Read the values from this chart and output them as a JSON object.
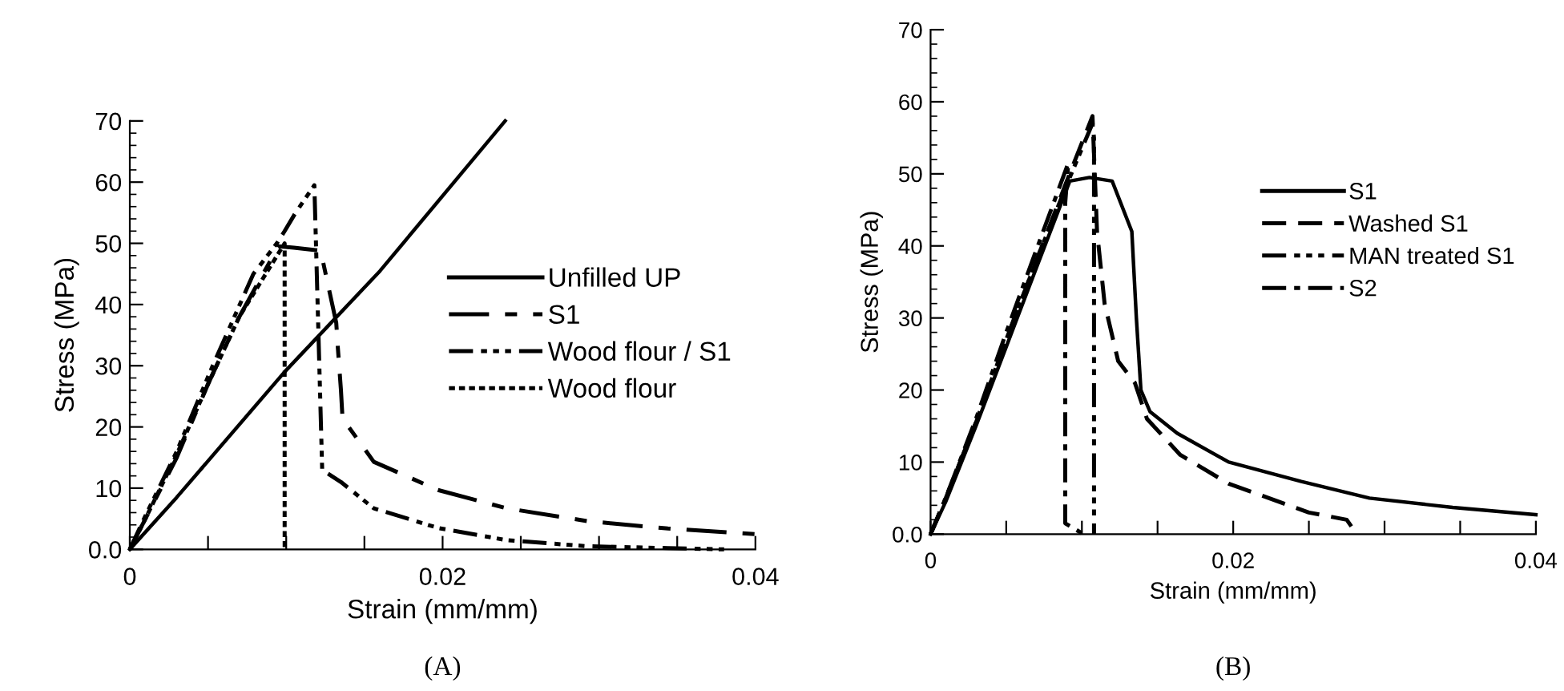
{
  "chart_data": [
    {
      "type": "line",
      "xlabel": "Strain (mm/mm)",
      "ylabel": "Stress (MPa)",
      "annotations": [
        "(A)"
      ],
      "legend": "right",
      "grid": false,
      "marker": "none",
      "xlim": [
        0,
        0.04
      ],
      "ylim": [
        0,
        70
      ],
      "xticks": [
        0,
        {
          "value": 0.005,
          "label": null
        },
        {
          "value": 0.01,
          "label": null
        },
        {
          "value": 0.015,
          "label": null
        },
        0.02,
        {
          "value": 0.025,
          "label": null
        },
        {
          "value": 0.03,
          "label": null
        },
        {
          "value": 0.035,
          "label": null
        },
        0.04
      ],
      "yticks": [
        {
          "value": 0,
          "label": "0.0"
        },
        10,
        20,
        30,
        40,
        50,
        60,
        70
      ],
      "series": [
        {
          "name": "Unfilled UP",
          "color": "#000000",
          "line_style": "solid",
          "x": [
            0,
            0.003,
            0.0099,
            0.016,
            0.024
          ],
          "values": [
            0,
            8.5,
            29,
            45.5,
            70
          ]
        },
        {
          "name": "S1",
          "color": "#000000",
          "line_style": "longdash",
          "x": [
            0,
            0.001,
            0.003,
            0.005,
            0.007,
            0.0095,
            0.0105,
            0.0122,
            0.0132,
            0.0133,
            0.0135,
            0.0136,
            0.0156,
            0.0197,
            0.0241,
            0.0293,
            0.0344,
            0.04
          ],
          "values": [
            0,
            5,
            15,
            27,
            38,
            49.5,
            49.3,
            48.8,
            37,
            33,
            26,
            21.4,
            14.3,
            9.7,
            6.7,
            4.6,
            3.4,
            2.5
          ]
        },
        {
          "name": "Wood flour / S1",
          "color": "#000000",
          "line_style": "dashdotdot",
          "x": [
            0,
            0.001,
            0.003,
            0.0053,
            0.0079,
            0.0094,
            0.0099,
            0.0106,
            0.0118,
            0.0123,
            0.0135,
            0.0156,
            0.0197,
            0.0241,
            0.0293,
            0.0344,
            0.038
          ],
          "values": [
            0,
            5.5,
            16,
            30,
            45,
            50,
            52,
            55,
            59.5,
            13,
            11,
            6.7,
            3.5,
            1.5,
            0.5,
            0.2,
            0
          ]
        },
        {
          "name": "Wood flour",
          "color": "#000000",
          "line_style": "dotted",
          "x": [
            0,
            0.001,
            0.003,
            0.005,
            0.007,
            0.0099,
            0.0099
          ],
          "values": [
            0,
            5,
            15.5,
            27,
            38,
            50,
            0
          ]
        }
      ]
    },
    {
      "type": "line",
      "xlabel": "Strain (mm/mm)",
      "ylabel": "Stress (MPa)",
      "annotations": [
        "(B)"
      ],
      "legend": "right",
      "grid": false,
      "marker": "none",
      "xlim": [
        0,
        0.04
      ],
      "ylim": [
        0,
        70
      ],
      "xticks": [
        0,
        {
          "value": 0.005,
          "label": null
        },
        {
          "value": 0.01,
          "label": null
        },
        {
          "value": 0.015,
          "label": null
        },
        0.02,
        {
          "value": 0.025,
          "label": null
        },
        {
          "value": 0.03,
          "label": null
        },
        {
          "value": 0.035,
          "label": null
        },
        0.04
      ],
      "yticks": [
        {
          "value": 0,
          "label": "0.0"
        },
        10,
        20,
        30,
        40,
        50,
        60,
        70
      ],
      "series": [
        {
          "name": "S1",
          "color": "#000000",
          "line_style": "solid",
          "x": [
            0,
            0.001,
            0.003,
            0.005,
            0.007,
            0.0092,
            0.0105,
            0.012,
            0.0133,
            0.0136,
            0.0139,
            0.0145,
            0.0163,
            0.0197,
            0.0245,
            0.029,
            0.0345,
            0.04
          ],
          "values": [
            0,
            4.5,
            15,
            26,
            37,
            49,
            49.5,
            49,
            42,
            30,
            20,
            17,
            14,
            10,
            7.3,
            5,
            3.7,
            2.7
          ]
        },
        {
          "name": "Washed S1",
          "color": "#000000",
          "line_style": "dashed",
          "x": [
            0,
            0.001,
            0.003,
            0.005,
            0.007,
            0.009,
            0.0107,
            0.011,
            0.0115,
            0.0124,
            0.0135,
            0.0143,
            0.0165,
            0.0197,
            0.025,
            0.0275,
            0.028
          ],
          "values": [
            0,
            5,
            15.5,
            27,
            38,
            49,
            58,
            42,
            32,
            24,
            21,
            16,
            11,
            7,
            3,
            2,
            0.5
          ]
        },
        {
          "name": "MAN treated S1",
          "color": "#000000",
          "line_style": "dashdotdot",
          "x": [
            0,
            0.001,
            0.003,
            0.005,
            0.007,
            0.009,
            0.0107,
            0.0108,
            0.0108
          ],
          "values": [
            0,
            5,
            15.5,
            27,
            38,
            48.5,
            57,
            55,
            0
          ]
        },
        {
          "name": "S2",
          "color": "#000000",
          "line_style": "dashdot",
          "x": [
            0,
            0.001,
            0.003,
            0.005,
            0.007,
            0.0091,
            0.0089,
            0.0089,
            0.0101
          ],
          "values": [
            0,
            5,
            16,
            28,
            39.5,
            51.5,
            46,
            1.5,
            0
          ]
        }
      ]
    }
  ]
}
